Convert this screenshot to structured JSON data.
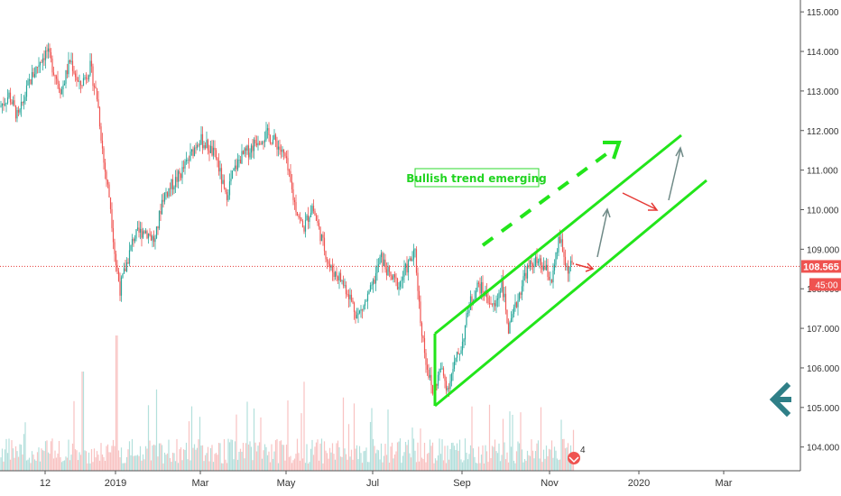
{
  "chart_data": {
    "type": "candlestick",
    "y_axis": {
      "range": [
        103.4,
        115.3
      ],
      "tick_labels": [
        "115.000",
        "114.000",
        "113.000",
        "112.000",
        "111.000",
        "110.000",
        "109.000",
        "108.000",
        "107.000",
        "106.000",
        "105.000",
        "104.000"
      ],
      "tick_values": [
        115,
        114,
        113,
        112,
        111,
        110,
        109,
        108,
        107,
        106,
        105,
        104
      ]
    },
    "x_axis": {
      "tick_labels": [
        "12",
        "2019",
        "Mar",
        "May",
        "Jul",
        "Sep",
        "Nov",
        "2020",
        "Mar"
      ]
    },
    "last_price": {
      "label": "108.565",
      "value": 108.565,
      "countdown": "45:00"
    },
    "annotation_text": "Bullish trend emerging",
    "indicator_badge": "4",
    "price_path": [
      [
        0,
        112.6
      ],
      [
        10,
        112.9
      ],
      [
        20,
        112.3
      ],
      [
        32,
        113.2
      ],
      [
        45,
        113.8
      ],
      [
        52,
        114.0
      ],
      [
        60,
        113.5
      ],
      [
        68,
        113.0
      ],
      [
        78,
        113.8
      ],
      [
        88,
        113.1
      ],
      [
        100,
        113.6
      ],
      [
        108,
        112.8
      ],
      [
        115,
        111.2
      ],
      [
        122,
        110.2
      ],
      [
        128,
        108.7
      ],
      [
        133,
        108.0
      ],
      [
        140,
        108.6
      ],
      [
        148,
        109.3
      ],
      [
        160,
        109.5
      ],
      [
        172,
        109.2
      ],
      [
        180,
        110.3
      ],
      [
        190,
        110.6
      ],
      [
        200,
        110.9
      ],
      [
        210,
        111.3
      ],
      [
        220,
        111.8
      ],
      [
        230,
        111.6
      ],
      [
        240,
        111.3
      ],
      [
        250,
        110.3
      ],
      [
        258,
        110.9
      ],
      [
        266,
        111.3
      ],
      [
        276,
        111.5
      ],
      [
        286,
        111.8
      ],
      [
        296,
        111.9
      ],
      [
        306,
        111.7
      ],
      [
        316,
        111.3
      ],
      [
        326,
        110.2
      ],
      [
        336,
        109.5
      ],
      [
        346,
        110.1
      ],
      [
        356,
        109.3
      ],
      [
        366,
        108.5
      ],
      [
        376,
        108.3
      ],
      [
        386,
        107.9
      ],
      [
        396,
        107.3
      ],
      [
        404,
        107.6
      ],
      [
        412,
        108.0
      ],
      [
        422,
        108.8
      ],
      [
        432,
        108.3
      ],
      [
        442,
        108.1
      ],
      [
        452,
        108.6
      ],
      [
        460,
        108.9
      ],
      [
        466,
        107.2
      ],
      [
        472,
        106.2
      ],
      [
        480,
        105.3
      ],
      [
        488,
        106.0
      ],
      [
        496,
        105.5
      ],
      [
        504,
        106.1
      ],
      [
        512,
        106.6
      ],
      [
        520,
        107.6
      ],
      [
        530,
        108.1
      ],
      [
        540,
        107.8
      ],
      [
        548,
        107.5
      ],
      [
        556,
        108.2
      ],
      [
        564,
        106.9
      ],
      [
        572,
        107.6
      ],
      [
        582,
        108.4
      ],
      [
        592,
        108.7
      ],
      [
        604,
        108.5
      ],
      [
        612,
        108.2
      ],
      [
        620,
        109.3
      ],
      [
        628,
        108.5
      ],
      [
        636,
        108.6
      ]
    ],
    "volume": {
      "range": [
        0,
        1
      ],
      "spike_dates": [
        "2019"
      ]
    },
    "colors": {
      "up": "#26a69a",
      "down": "#ef5350",
      "channel": "#22e51a",
      "price_line": "#e53935",
      "gray_arrow": "#6f8a87",
      "left_arrow": "#2f7f87"
    }
  }
}
